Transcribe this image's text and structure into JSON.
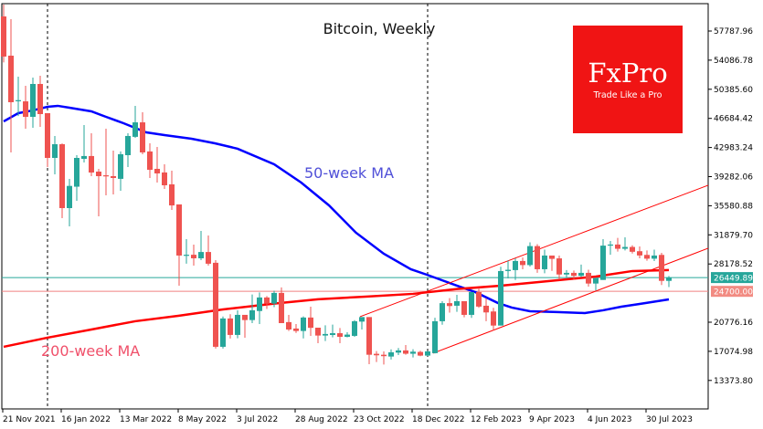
{
  "chart_data": {
    "type": "candlestick",
    "title": "Bitcoin, Weekly",
    "interval": "weekly",
    "colors": {
      "up": "#26a69a",
      "down": "#ef5350",
      "ma50": "#0000ff",
      "ma200": "#ff0000",
      "channel": "#ff0000",
      "current_line": "#26a69a",
      "level_line": "#f08080"
    },
    "y_ticks": [
      "57787.96",
      "54086.78",
      "50385.60",
      "46684.42",
      "42983.24",
      "39282.06",
      "35580.88",
      "31879.70",
      "28178.52",
      "20776.16",
      "17074.98",
      "13373.80"
    ],
    "y_tick_values": [
      57787.96,
      54086.78,
      50385.6,
      46684.42,
      42983.24,
      39282.06,
      35580.88,
      31879.7,
      28178.52,
      20776.16,
      17074.98,
      13373.8
    ],
    "x_ticks": [
      {
        "label": "21 Nov 2021",
        "week": 0
      },
      {
        "label": "16 Jan 2022",
        "week": 8
      },
      {
        "label": "13 Mar 2022",
        "week": 16
      },
      {
        "label": "8 May 2022",
        "week": 24
      },
      {
        "label": "3 Jul 2022",
        "week": 32
      },
      {
        "label": "28 Aug 2022",
        "week": 40
      },
      {
        "label": "23 Oct 2022",
        "week": 48
      },
      {
        "label": "18 Dec 2022",
        "week": 56
      },
      {
        "label": "12 Feb 2023",
        "week": 64
      },
      {
        "label": "9 Apr 2023",
        "week": 72
      },
      {
        "label": "4 Jun 2023",
        "week": 80
      },
      {
        "label": "30 Jul 2023",
        "week": 88
      }
    ],
    "candles_ohlc": [
      [
        59644,
        61200,
        53800,
        54540
      ],
      [
        54656,
        59300,
        42360,
        48740
      ],
      [
        48900,
        51990,
        46990,
        49000
      ],
      [
        48850,
        50830,
        45370,
        46880
      ],
      [
        46880,
        51870,
        45490,
        51060
      ],
      [
        51060,
        52100,
        45600,
        47230
      ],
      [
        47350,
        47350,
        40500,
        41660
      ],
      [
        41660,
        44450,
        39570,
        43400
      ],
      [
        43400,
        43500,
        34000,
        35280
      ],
      [
        35280,
        38990,
        32960,
        38100
      ],
      [
        38000,
        42010,
        36210,
        41660
      ],
      [
        41540,
        45840,
        41080,
        41900
      ],
      [
        41900,
        44800,
        39340,
        39800
      ],
      [
        39920,
        40270,
        34240,
        39340
      ],
      [
        39450,
        45370,
        36900,
        39340
      ],
      [
        39340,
        42590,
        37020,
        39110
      ],
      [
        39000,
        42480,
        37490,
        42130
      ],
      [
        42010,
        44800,
        40500,
        44450
      ],
      [
        44340,
        48270,
        44220,
        46180
      ],
      [
        46180,
        47460,
        42130,
        42360
      ],
      [
        42480,
        43520,
        39110,
        40150
      ],
      [
        40270,
        43050,
        38530,
        39690
      ],
      [
        39810,
        40850,
        37710,
        38180
      ],
      [
        38300,
        40040,
        35050,
        35620
      ],
      [
        35750,
        35750,
        25420,
        29250
      ],
      [
        29250,
        31340,
        28210,
        29350
      ],
      [
        29350,
        30640,
        27970,
        28900
      ],
      [
        28900,
        32380,
        28670,
        29700
      ],
      [
        29700,
        31800,
        27970,
        28210
      ],
      [
        28330,
        28670,
        17420,
        17650
      ],
      [
        17650,
        21500,
        17420,
        21250
      ],
      [
        21250,
        21790,
        18700,
        19160
      ],
      [
        19160,
        22290,
        18730,
        21710
      ],
      [
        21710,
        21710,
        18800,
        21050
      ],
      [
        21050,
        24300,
        20660,
        22290
      ],
      [
        22200,
        24560,
        20550,
        23920
      ],
      [
        23920,
        24100,
        22460,
        23140
      ],
      [
        23140,
        24780,
        22690,
        24500
      ],
      [
        24500,
        25200,
        20660,
        20660
      ],
      [
        20790,
        21710,
        19660,
        19850
      ],
      [
        19970,
        20550,
        19420,
        19660
      ],
      [
        19660,
        21520,
        18710,
        21370
      ],
      [
        21370,
        22750,
        19030,
        20060
      ],
      [
        20080,
        20080,
        18110,
        19080
      ],
      [
        19080,
        20390,
        18390,
        19280
      ],
      [
        19150,
        20470,
        18850,
        19380
      ],
      [
        19380,
        20040,
        18110,
        18920
      ],
      [
        18920,
        19500,
        18850,
        19200
      ],
      [
        19040,
        21030,
        18920,
        20900
      ],
      [
        20850,
        21430,
        19850,
        21430
      ],
      [
        21430,
        21430,
        15440,
        16640
      ],
      [
        16760,
        17110,
        15710,
        16570
      ],
      [
        16640,
        17070,
        15400,
        16460
      ],
      [
        16410,
        17330,
        16030,
        16950
      ],
      [
        16910,
        17500,
        16600,
        17190
      ],
      [
        17190,
        17870,
        16640,
        16770
      ],
      [
        16770,
        17340,
        16300,
        17030
      ],
      [
        17000,
        17150,
        16450,
        16530
      ],
      [
        16530,
        17100,
        16500,
        17070
      ],
      [
        16840,
        21340,
        16800,
        20900
      ],
      [
        20900,
        23450,
        20460,
        23200
      ],
      [
        23200,
        23830,
        22000,
        22830
      ],
      [
        22870,
        24260,
        22100,
        23450
      ],
      [
        23450,
        23450,
        21400,
        21710
      ],
      [
        21710,
        24610,
        21330,
        24610
      ],
      [
        24610,
        25190,
        22600,
        22760
      ],
      [
        22870,
        23830,
        20910,
        22020
      ],
      [
        22140,
        22600,
        19760,
        20350
      ],
      [
        20350,
        27830,
        20350,
        27280
      ],
      [
        27280,
        28620,
        26340,
        27440
      ],
      [
        27400,
        28890,
        26140,
        28560
      ],
      [
        28560,
        29000,
        27500,
        28040
      ],
      [
        28040,
        30930,
        27850,
        30450
      ],
      [
        30450,
        30690,
        27050,
        27510
      ],
      [
        27510,
        30000,
        27000,
        29250
      ],
      [
        29250,
        29250,
        27300,
        28830
      ],
      [
        28890,
        29250,
        26200,
        26840
      ],
      [
        26840,
        27400,
        26400,
        27050
      ],
      [
        27050,
        27350,
        26200,
        26670
      ],
      [
        26670,
        28100,
        26500,
        27050
      ],
      [
        27050,
        27450,
        25300,
        25690
      ],
      [
        25690,
        26150,
        24800,
        26380
      ],
      [
        26150,
        31340,
        26150,
        30510
      ],
      [
        30510,
        31100,
        29350,
        30650
      ],
      [
        30650,
        31500,
        29750,
        30110
      ],
      [
        30110,
        31570,
        29900,
        30340
      ],
      [
        30340,
        30550,
        29500,
        29730
      ],
      [
        29800,
        30400,
        28900,
        29260
      ],
      [
        29330,
        29900,
        28600,
        28850
      ],
      [
        28850,
        30000,
        28550,
        29250
      ],
      [
        29330,
        29600,
        25500,
        26030
      ],
      [
        26030,
        26650,
        25250,
        26450
      ]
    ],
    "series": [
      {
        "name": "50-week MA",
        "points": [
          [
            0,
            46300
          ],
          [
            2,
            47348
          ],
          [
            4,
            47700
          ],
          [
            6,
            48160
          ],
          [
            7.4,
            48280
          ],
          [
            9,
            48040
          ],
          [
            12,
            47580
          ],
          [
            14,
            46880
          ],
          [
            16.4,
            46070
          ],
          [
            19.5,
            44910
          ],
          [
            22,
            44560
          ],
          [
            25.7,
            44100
          ],
          [
            28.9,
            43520
          ],
          [
            32,
            42830
          ],
          [
            37,
            40850
          ],
          [
            40.7,
            38530
          ],
          [
            44.5,
            35630
          ],
          [
            48.2,
            32150
          ],
          [
            52,
            29480
          ],
          [
            55.7,
            27510
          ],
          [
            57.9,
            26810
          ],
          [
            62,
            25420
          ],
          [
            64.5,
            24610
          ],
          [
            67.6,
            23220
          ],
          [
            69.5,
            22640
          ],
          [
            72,
            22170
          ],
          [
            75.7,
            22060
          ],
          [
            79.5,
            21940
          ],
          [
            82,
            22290
          ],
          [
            84.5,
            22750
          ],
          [
            87,
            23100
          ],
          [
            91,
            23680
          ]
        ]
      },
      {
        "name": "200-week MA",
        "points": [
          [
            0,
            17650
          ],
          [
            6,
            18810
          ],
          [
            12,
            19850
          ],
          [
            18,
            20900
          ],
          [
            24,
            21600
          ],
          [
            30,
            22400
          ],
          [
            37,
            23140
          ],
          [
            43,
            23690
          ],
          [
            49.5,
            24030
          ],
          [
            56,
            24380
          ],
          [
            62,
            24990
          ],
          [
            68,
            25420
          ],
          [
            74.5,
            26000
          ],
          [
            81,
            26580
          ],
          [
            86,
            27280
          ],
          [
            91,
            27400
          ]
        ]
      }
    ],
    "channel_lines": [
      {
        "name": "upper",
        "from": [
          48.75,
          21480
        ],
        "to": [
          96.4,
          38184
        ]
      },
      {
        "name": "lower",
        "from": [
          58.75,
          16840
        ],
        "to": [
          96.4,
          30180
        ]
      }
    ],
    "vertical_markers_week": [
      6,
      58
    ],
    "current_price": {
      "value": 26449.89,
      "label": "26449.89"
    },
    "level": {
      "value": 24700.0,
      "label": "24700.00"
    },
    "annotations": {
      "ma50": "50-week MA",
      "ma200": "200-week MA"
    },
    "y_range": [
      11500,
      61500
    ]
  },
  "logo": {
    "brand": "FxPro",
    "tagline": "Trade Like a Pro",
    "color": "#f01414"
  }
}
